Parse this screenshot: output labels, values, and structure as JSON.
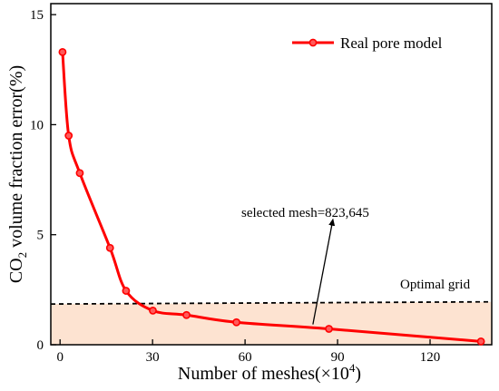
{
  "chart_data": {
    "type": "line",
    "title": "",
    "xlabel_main": "Number of meshes(×10",
    "xlabel_sup": "4",
    "xlabel_end": ")",
    "ylabel_pre": "CO",
    "ylabel_sub": "2",
    "ylabel_post": " volume fraction error(%)",
    "xlim": [
      -3,
      140
    ],
    "ylim": [
      0,
      15.5
    ],
    "xticks": [
      0,
      30,
      60,
      90,
      120
    ],
    "yticks": [
      0,
      5,
      10,
      15
    ],
    "series": [
      {
        "name": "Real pore model",
        "color": "#ff0000",
        "marker": "circle",
        "x": [
          0.8,
          2.8,
          6.4,
          16.2,
          21.4,
          30.1,
          41.0,
          57.2,
          87.2,
          136.5
        ],
        "y": [
          13.3,
          9.5,
          7.8,
          4.4,
          2.45,
          1.55,
          1.35,
          1.02,
          0.72,
          0.15
        ]
      }
    ],
    "reference_line": {
      "color": "#000000",
      "style": "dashed",
      "x": [
        -3,
        140
      ],
      "y": [
        1.85,
        1.95
      ]
    },
    "shaded_region": {
      "color": "#fde3d1",
      "y_from": 0
    },
    "legend": {
      "position": "top-right"
    },
    "grid": false,
    "annotations": {
      "optimal_grid": "Optimal grid",
      "selected_mesh": "selected mesh=823,645",
      "arrow": {
        "from": [
          82.0,
          0.92
        ],
        "to": [
          88.5,
          5.7
        ]
      }
    }
  }
}
